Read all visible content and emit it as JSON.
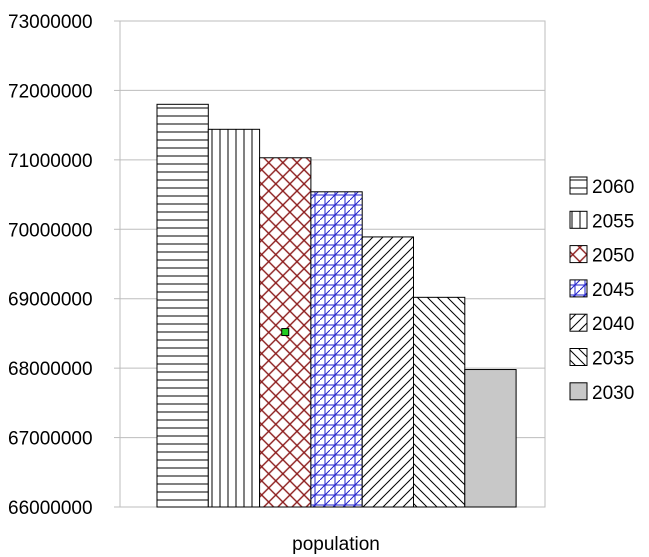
{
  "chart_data": {
    "type": "bar",
    "categories": [
      "population"
    ],
    "series": [
      {
        "name": "2060",
        "values": [
          71800000
        ],
        "pattern": "horizontal",
        "color": "#000000"
      },
      {
        "name": "2055",
        "values": [
          71440000
        ],
        "pattern": "vertical",
        "color": "#000000"
      },
      {
        "name": "2050",
        "values": [
          71030000
        ],
        "pattern": "crosshatch-diagonal",
        "color": "#8b1a1a"
      },
      {
        "name": "2045",
        "values": [
          70540000
        ],
        "pattern": "grid-diagonal",
        "color": "#2222cc"
      },
      {
        "name": "2040",
        "values": [
          69890000
        ],
        "pattern": "diagonal-up",
        "color": "#000000"
      },
      {
        "name": "2035",
        "values": [
          69020000
        ],
        "pattern": "diagonal-down",
        "color": "#000000"
      },
      {
        "name": "2030",
        "values": [
          67980000
        ],
        "pattern": "solid",
        "color": "#c8c8c8"
      }
    ],
    "yticks": [
      "73000000",
      "72000000",
      "71000000",
      "70000000",
      "69000000",
      "68000000",
      "67000000",
      "66000000"
    ],
    "ylim": [
      66000000,
      73000000
    ],
    "grid": true,
    "legend": "right",
    "marker": {
      "series": "2050",
      "value": 68520000,
      "color": "#22cc22"
    }
  }
}
